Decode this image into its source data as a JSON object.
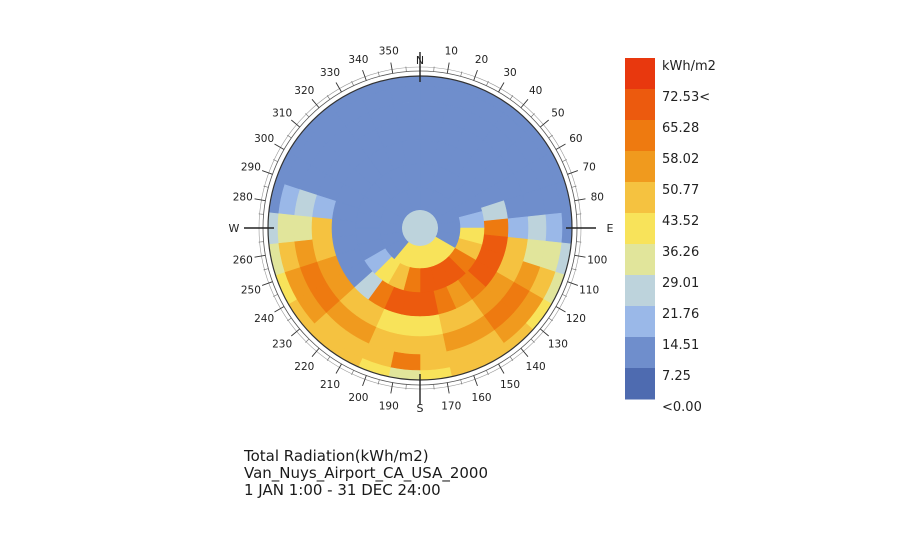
{
  "chart_data": {
    "type": "heatmap",
    "subtype": "radiation-sky-dome",
    "units": "kWh/m2",
    "compass": {
      "N": "N",
      "E": "E",
      "S": "S",
      "W": "W"
    },
    "azimuth_ticks": [
      "10",
      "20",
      "30",
      "40",
      "50",
      "60",
      "70",
      "80",
      "100",
      "110",
      "120",
      "130",
      "140",
      "150",
      "160",
      "170",
      "190",
      "200",
      "210",
      "220",
      "230",
      "240",
      "250",
      "260",
      "280",
      "290",
      "300",
      "310",
      "320",
      "330",
      "340",
      "350"
    ],
    "legend": {
      "title": "kWh/m2",
      "labels": [
        "72.53<",
        "65.28",
        "58.02",
        "50.77",
        "43.52",
        "36.26",
        "29.01",
        "21.76",
        "14.51",
        "7.25",
        "<0.00"
      ],
      "colors": [
        "#e8380e",
        "#ec5a0e",
        "#ee7a10",
        "#f09a1e",
        "#f5c240",
        "#f8e35a",
        "#e1e59b",
        "#bdd3dc",
        "#9ab8e8",
        "#6f8ecc",
        "#4e6bb0"
      ]
    },
    "rings": [
      {
        "altitude_band": "78-90",
        "values": [
          29
        ]
      },
      {
        "altitude_band": "66-78",
        "sectors_start_az": 0,
        "values": [
          14,
          14,
          14,
          14,
          14,
          14,
          38,
          40,
          42,
          40,
          38,
          14,
          14,
          14,
          14,
          14,
          14,
          14
        ]
      },
      {
        "altitude_band": "54-66",
        "sectors_start_az": 0,
        "values": [
          14,
          14,
          14,
          14,
          14,
          16,
          40,
          48,
          60,
          66,
          70,
          66,
          60,
          48,
          40,
          16,
          14,
          14,
          14,
          14,
          14,
          14,
          14,
          14
        ]
      },
      {
        "altitude_band": "42-54",
        "sectors_start_az": 0,
        "values": [
          14,
          14,
          14,
          14,
          14,
          14,
          22,
          60,
          66,
          70,
          66,
          60,
          58,
          60,
          66,
          70,
          66,
          60,
          22,
          14,
          14,
          14,
          14,
          14,
          14,
          14,
          14,
          14,
          14,
          14
        ]
      },
      {
        "altitude_band": "30-42",
        "sectors_start_az": 0,
        "values": [
          14,
          14,
          14,
          14,
          14,
          14,
          14,
          18,
          44,
          50,
          54,
          52,
          48,
          44,
          42,
          40,
          42,
          44,
          48,
          52,
          54,
          50,
          44,
          18,
          14,
          14,
          14,
          14,
          14,
          14
        ]
      },
      {
        "altitude_band": "18-30",
        "sectors_start_az": 0,
        "values": [
          14,
          14,
          14,
          14,
          14,
          14,
          14,
          22,
          36,
          52,
          60,
          62,
          58,
          52,
          48,
          46,
          48,
          52,
          58,
          62,
          60,
          52,
          36,
          22,
          14,
          14,
          14,
          14,
          14,
          14
        ]
      },
      {
        "altitude_band": "6-18",
        "sectors_start_az": 0,
        "values": [
          14,
          14,
          14,
          14,
          14,
          14,
          14,
          18,
          30,
          46,
          54,
          58,
          50,
          44,
          50,
          60,
          50,
          44,
          50,
          58,
          54,
          46,
          30,
          18,
          14,
          14,
          14,
          14,
          14,
          14
        ]
      },
      {
        "altitude_band": "0-6",
        "sectors_start_az": 0,
        "values": [
          14,
          14,
          14,
          14,
          14,
          14,
          14,
          14,
          22,
          32,
          40,
          46,
          48,
          44,
          40,
          36,
          40,
          44,
          48,
          46,
          40,
          32,
          22,
          14,
          14,
          14,
          14,
          14,
          14,
          14
        ]
      }
    ],
    "title": "Total Radiation(kWh/m2)",
    "location": "Van_Nuys_Airport_CA_USA_2000",
    "period": "1 JAN 1:00 - 31 DEC 24:00"
  }
}
